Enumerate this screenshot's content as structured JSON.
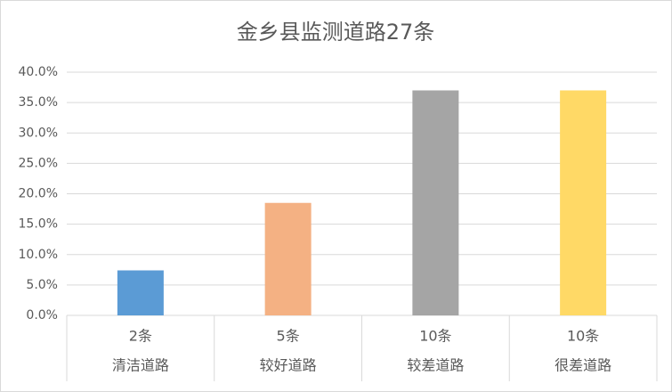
{
  "chart_data": {
    "type": "bar",
    "title": "金乡县监测道路27条",
    "categories": [
      "清洁道路",
      "较好道路",
      "较差道路",
      "很差道路"
    ],
    "category_counts": [
      "2条",
      "5条",
      "10条",
      "10条"
    ],
    "values": [
      7.4,
      18.5,
      37.0,
      37.0
    ],
    "colors": [
      "#5b9bd5",
      "#f4b183",
      "#a5a5a5",
      "#ffd966"
    ],
    "ylim": [
      0,
      40
    ],
    "yticks": [
      {
        "value": 0,
        "label": "0.0%"
      },
      {
        "value": 5,
        "label": "5.0%"
      },
      {
        "value": 10,
        "label": "10.0%"
      },
      {
        "value": 15,
        "label": "15.0%"
      },
      {
        "value": 20,
        "label": "20.0%"
      },
      {
        "value": 25,
        "label": "25.0%"
      },
      {
        "value": 30,
        "label": "30.0%"
      },
      {
        "value": 35,
        "label": "35.0%"
      },
      {
        "value": 40,
        "label": "40.0%"
      }
    ],
    "grid": true
  }
}
